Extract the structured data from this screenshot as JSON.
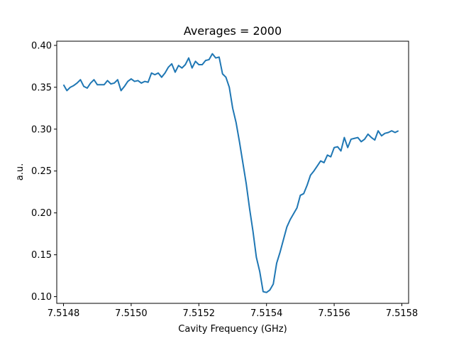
{
  "chart_data": {
    "type": "line",
    "title": "Averages = 2000",
    "xlabel": "Cavity Frequency (GHz)",
    "ylabel": "a.u.",
    "xlim": [
      7.51478,
      7.51582
    ],
    "ylim": [
      0.092,
      0.405
    ],
    "xticks": [
      7.5148,
      7.515,
      7.5152,
      7.5154,
      7.5156,
      7.5158
    ],
    "xtick_labels": [
      "7.5148",
      "7.5150",
      "7.5152",
      "7.5154",
      "7.5156",
      "7.5158"
    ],
    "yticks": [
      0.1,
      0.15,
      0.2,
      0.25,
      0.3,
      0.35,
      0.4
    ],
    "ytick_labels": [
      "0.10",
      "0.15",
      "0.20",
      "0.25",
      "0.30",
      "0.35",
      "0.40"
    ],
    "grid": false,
    "line_color": "#1f77b4",
    "series": [
      {
        "x": [
          7.5148,
          7.51481,
          7.51482,
          7.51483,
          7.51484,
          7.51485,
          7.51486,
          7.51487,
          7.51488,
          7.51489,
          7.5149,
          7.51491,
          7.51492,
          7.51493,
          7.51494,
          7.51495,
          7.51496,
          7.51497,
          7.51498,
          7.51499,
          7.515,
          7.51501,
          7.51502,
          7.51503,
          7.51504,
          7.51505,
          7.51506,
          7.51507,
          7.51508,
          7.51509,
          7.5151,
          7.51511,
          7.51512,
          7.51513,
          7.51514,
          7.51515,
          7.51516,
          7.51517,
          7.51518,
          7.51519,
          7.5152,
          7.51521,
          7.51522,
          7.51523,
          7.51524,
          7.51525,
          7.51526,
          7.51527,
          7.51528,
          7.51529,
          7.5153,
          7.51531,
          7.51532,
          7.51533,
          7.51534,
          7.51535,
          7.51536,
          7.51537,
          7.51538,
          7.51539,
          7.5154,
          7.51541,
          7.51542,
          7.51543,
          7.51544,
          7.51545,
          7.51546,
          7.51547,
          7.51548,
          7.51549,
          7.5155,
          7.51551,
          7.51552,
          7.51553,
          7.51554,
          7.51555,
          7.51556,
          7.51557,
          7.51558,
          7.51559,
          7.5156,
          7.51561,
          7.51562,
          7.51563,
          7.51564,
          7.51565,
          7.51566,
          7.51567,
          7.51568,
          7.51569,
          7.5157,
          7.51571,
          7.51572,
          7.51573,
          7.51574,
          7.51575,
          7.51576,
          7.51577,
          7.51578,
          7.51579
        ],
        "y": [
          0.353,
          0.346,
          0.35,
          0.352,
          0.355,
          0.359,
          0.351,
          0.349,
          0.355,
          0.359,
          0.353,
          0.353,
          0.353,
          0.358,
          0.354,
          0.355,
          0.359,
          0.346,
          0.351,
          0.357,
          0.36,
          0.357,
          0.358,
          0.355,
          0.357,
          0.356,
          0.367,
          0.365,
          0.367,
          0.362,
          0.367,
          0.374,
          0.378,
          0.368,
          0.376,
          0.373,
          0.377,
          0.385,
          0.373,
          0.381,
          0.377,
          0.377,
          0.382,
          0.383,
          0.39,
          0.385,
          0.386,
          0.366,
          0.362,
          0.35,
          0.325,
          0.308,
          0.285,
          0.26,
          0.235,
          0.205,
          0.178,
          0.147,
          0.13,
          0.106,
          0.105,
          0.108,
          0.115,
          0.14,
          0.153,
          0.168,
          0.183,
          0.192,
          0.199,
          0.206,
          0.221,
          0.223,
          0.233,
          0.245,
          0.25,
          0.256,
          0.262,
          0.26,
          0.269,
          0.267,
          0.278,
          0.279,
          0.274,
          0.29,
          0.278,
          0.288,
          0.289,
          0.29,
          0.285,
          0.288,
          0.294,
          0.29,
          0.287,
          0.298,
          0.292,
          0.295,
          0.296,
          0.298,
          0.296,
          0.298
        ]
      }
    ]
  }
}
